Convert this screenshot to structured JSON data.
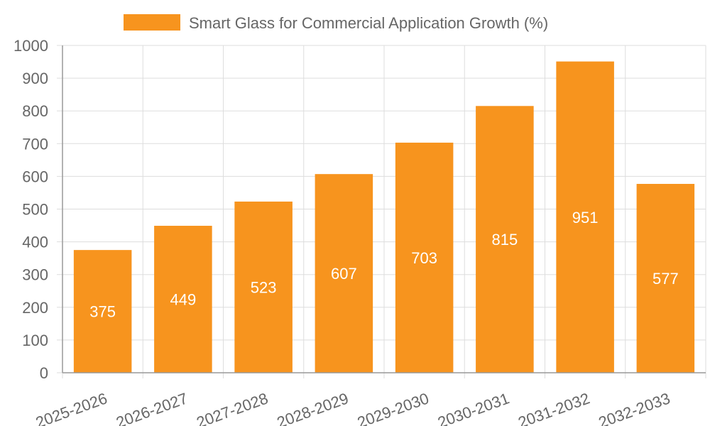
{
  "chart_data": {
    "type": "bar",
    "categories": [
      "2025-2026",
      "2026-2027",
      "2027-2028",
      "2028-2029",
      "2029-2030",
      "2030-2031",
      "2031-2032",
      "2032-2033"
    ],
    "series": [
      {
        "name": "Smart Glass for Commercial Application Growth (%)",
        "values": [
          375,
          449,
          523,
          607,
          703,
          815,
          951,
          577
        ],
        "color": "#F7941E"
      }
    ],
    "yticks": [
      0,
      100,
      200,
      300,
      400,
      500,
      600,
      700,
      800,
      900,
      1000
    ],
    "ylim": [
      0,
      1000
    ],
    "grid": true,
    "legend_position": "top",
    "xlabel": "",
    "ylabel": ""
  },
  "colors": {
    "bar": "#F7941E",
    "grid": "#dddddd",
    "axis": "#999999",
    "text": "#666666",
    "label": "#ffffff"
  }
}
